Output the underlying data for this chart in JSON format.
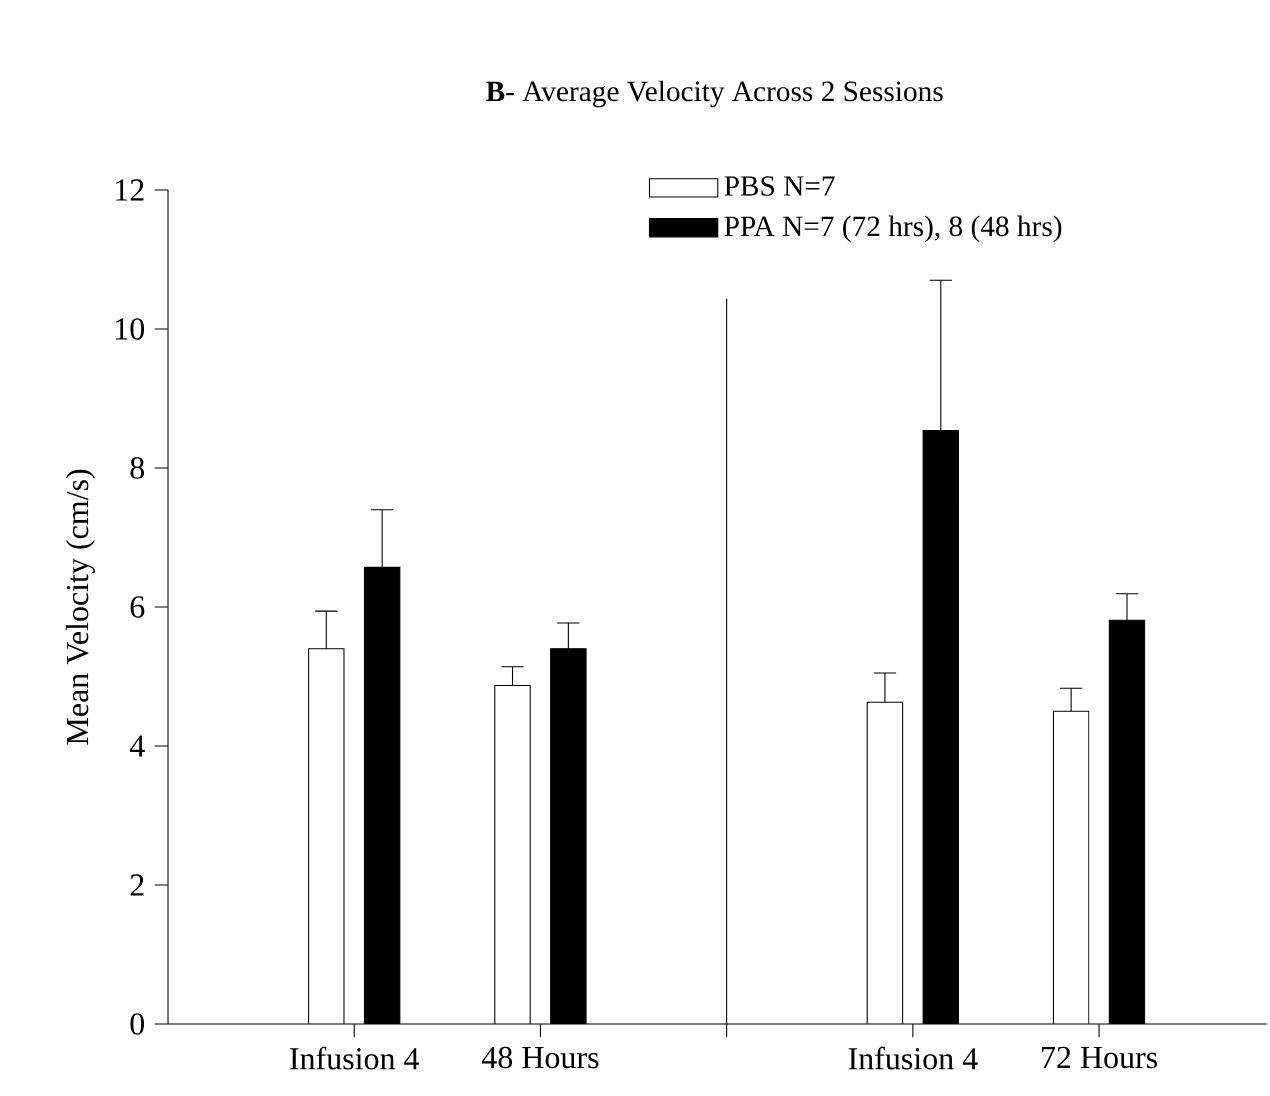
{
  "chart_data": {
    "type": "bar",
    "title": "**B**- Average Velocity Across 2 Sessions",
    "ylabel": "Mean Velocity (cm/s)",
    "categories": [
      "Infusion 4",
      "48 Hours",
      null,
      "Infusion 4",
      "72 Hours"
    ],
    "series": [
      {
        "name": "PBS N=7",
        "color": "#ffffff",
        "values": [
          5.4,
          4.87,
          null,
          4.63,
          4.5
        ],
        "errors": [
          [
            5.4,
            5.94
          ],
          [
            4.87,
            5.14
          ],
          null,
          [
            4.63,
            5.05
          ],
          [
            4.5,
            4.83
          ]
        ]
      },
      {
        "name": "PPA N=7 (72 hrs), 8 (48 hrs)",
        "color": "#000000",
        "values": [
          6.57,
          5.4,
          null,
          8.54,
          5.81
        ],
        "errors": [
          [
            6.57,
            7.4
          ],
          [
            5.4,
            5.77
          ],
          null,
          [
            8.54,
            10.7
          ],
          [
            5.81,
            6.19
          ]
        ]
      }
    ],
    "ylim": [
      0,
      12
    ],
    "yticks": [
      0,
      2,
      4,
      6,
      8,
      10,
      12
    ],
    "legend": "top right"
  }
}
